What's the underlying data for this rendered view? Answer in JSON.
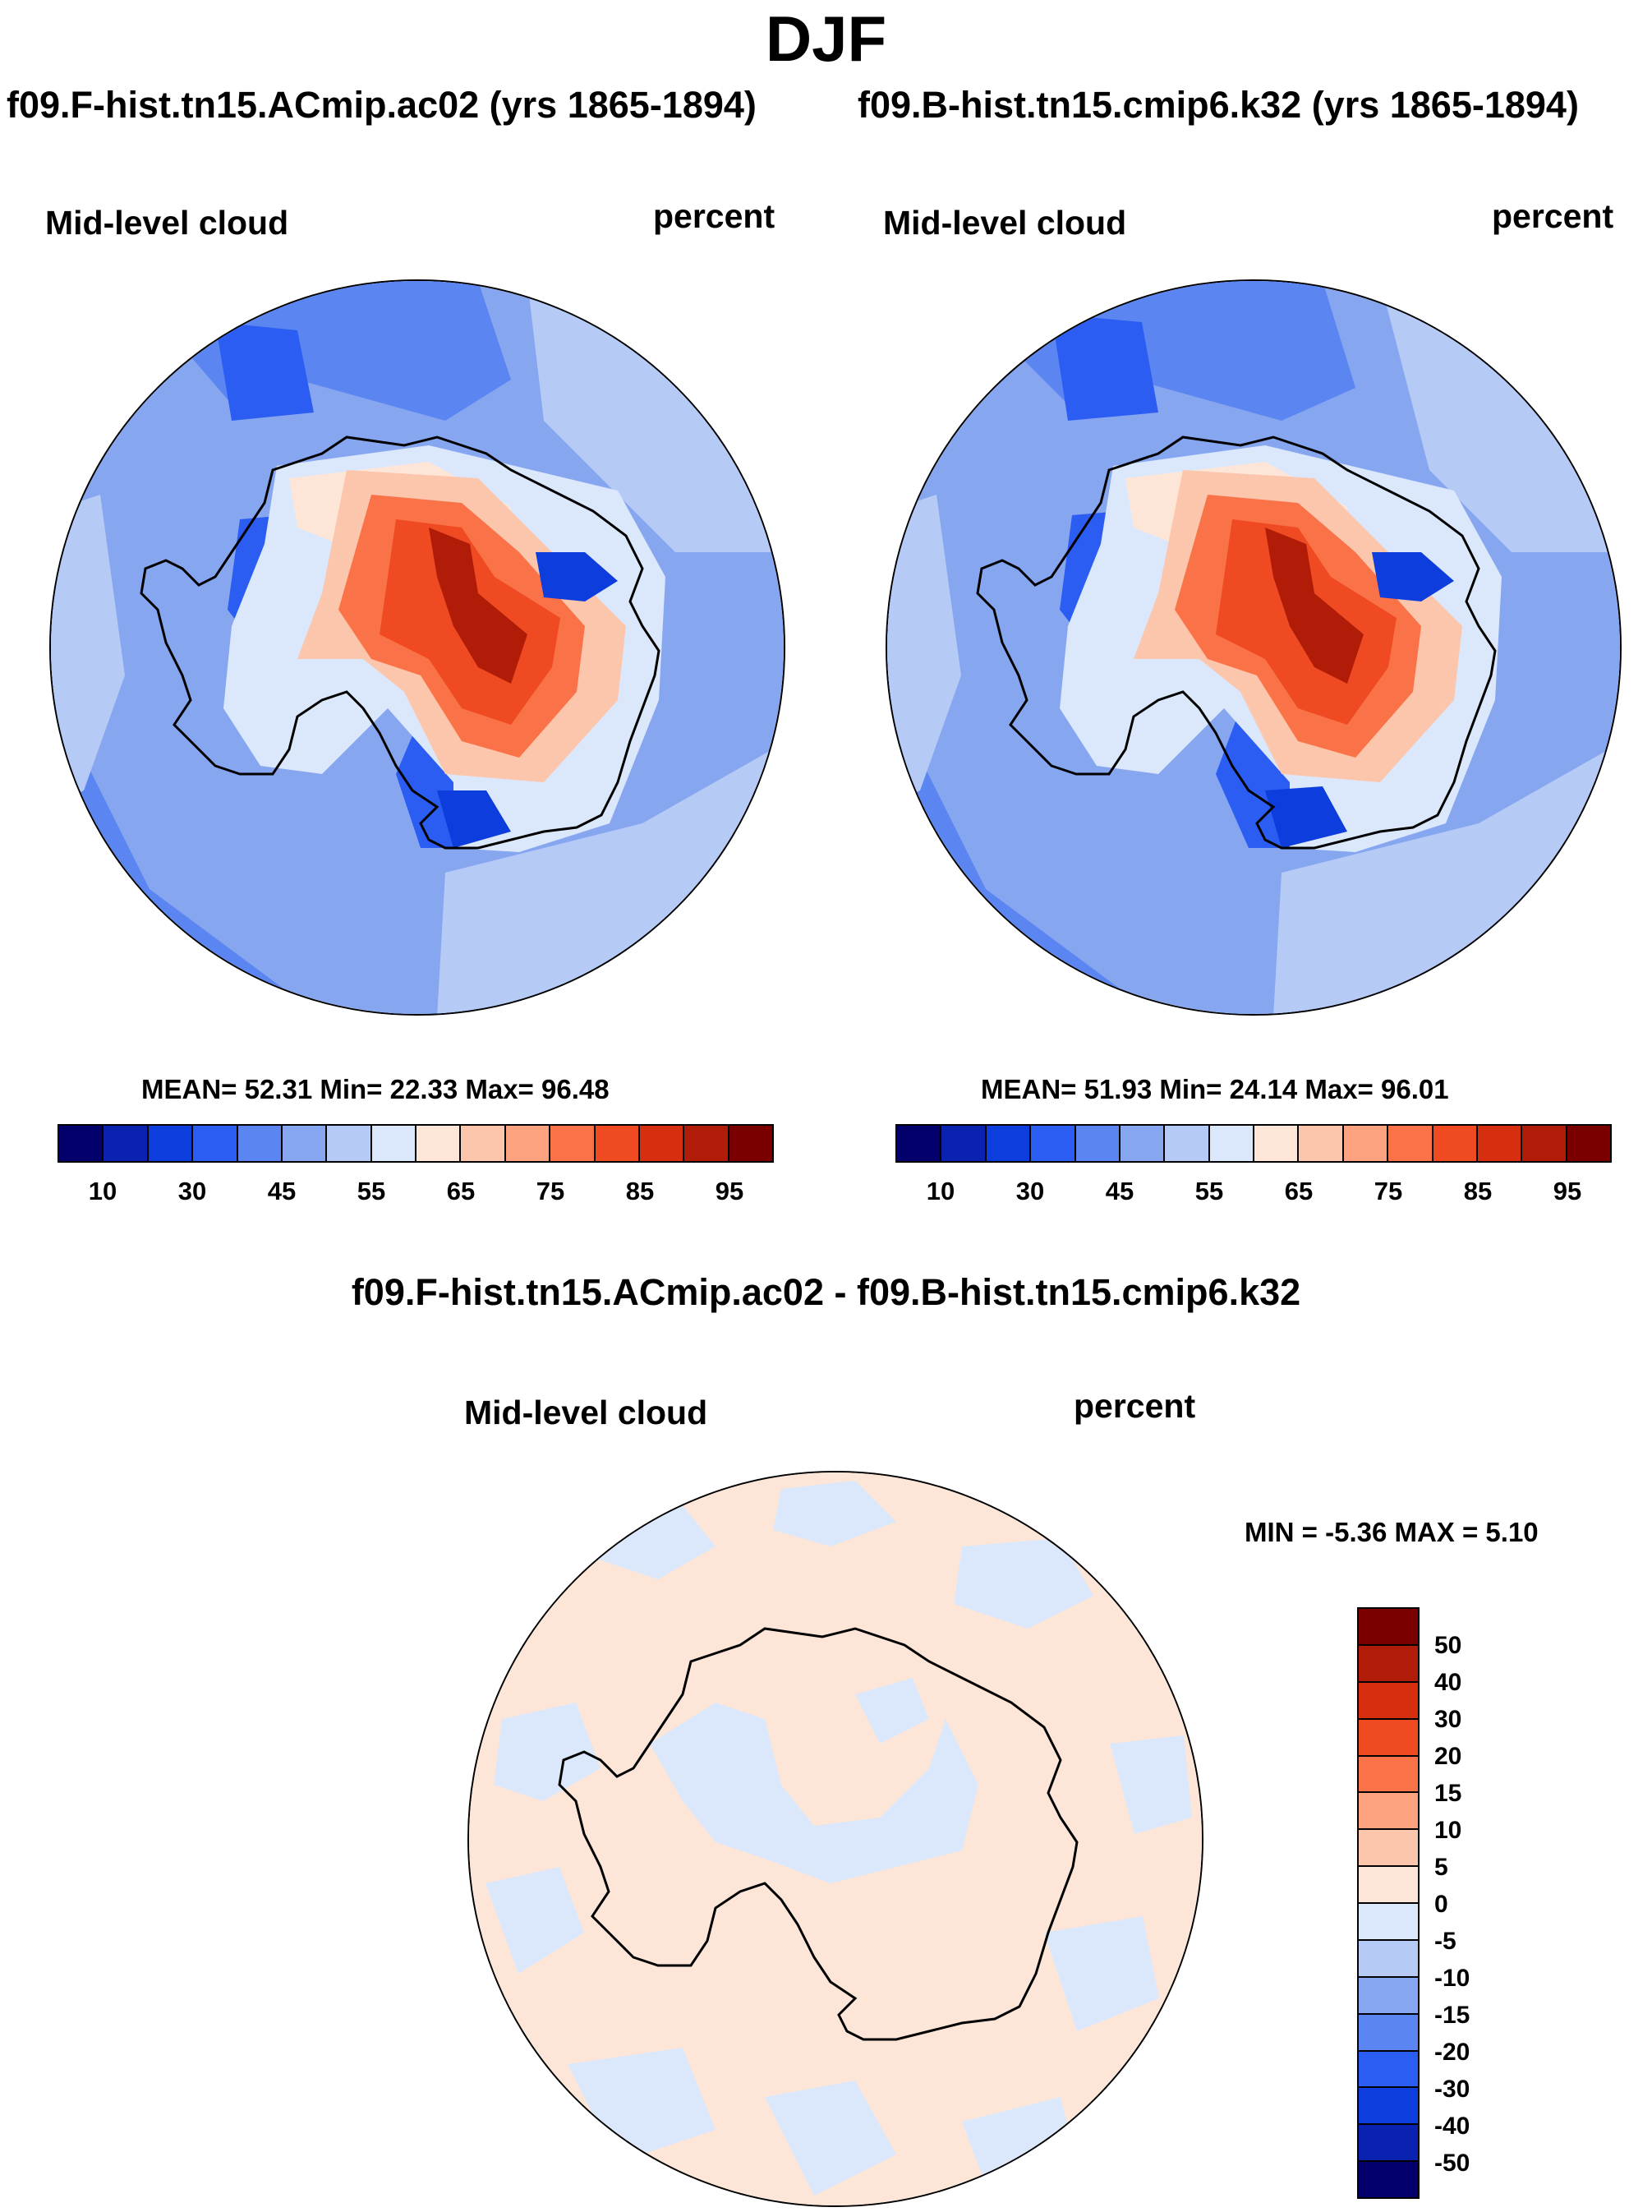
{
  "title": "DJF",
  "palette": [
    "#03006b",
    "#0a22b0",
    "#0d3ddd",
    "#2c5df2",
    "#5b86f2",
    "#86a6f0",
    "#b5caf5",
    "#dbe8fc",
    "#fde6d7",
    "#fcc6ad",
    "#fca27f",
    "#fa7348",
    "#ef4a22",
    "#d82e10",
    "#b01c08",
    "#7a0000"
  ],
  "diff_palette": [
    "#03006b",
    "#0a22b0",
    "#0d3ddd",
    "#2c5df2",
    "#5b86f2",
    "#86a6f0",
    "#b5caf5",
    "#dbe8fc",
    "#fde6d7",
    "#fcc6ad",
    "#fca27f",
    "#fa7348",
    "#ef4a22",
    "#d82e10",
    "#b01c08",
    "#7a0000"
  ],
  "panels": [
    {
      "title": "f09.F-hist.tn15.ACmip.ac02 (yrs 1865-1894)",
      "variable": "Mid-level cloud",
      "units": "percent",
      "stats": "MEAN=  52.31  Min=  22.33  Max=  96.48",
      "mean": 52.31,
      "min": 22.33,
      "max": 96.48
    },
    {
      "title": "f09.B-hist.tn15.cmip6.k32 (yrs 1865-1894)",
      "variable": "Mid-level cloud",
      "units": "percent",
      "stats": "MEAN=  51.93  Min=  24.14  Max=  96.01",
      "mean": 51.93,
      "min": 24.14,
      "max": 96.01
    }
  ],
  "colorbar_ticks": [
    "10",
    "30",
    "45",
    "55",
    "65",
    "75",
    "85",
    "95"
  ],
  "diff": {
    "title": "f09.F-hist.tn15.ACmip.ac02 - f09.B-hist.tn15.cmip6.k32",
    "variable": "Mid-level cloud",
    "units": "percent",
    "stats": "MIN =  -5.36 MAX =    5.10",
    "min": -5.36,
    "max": 5.1,
    "colorbar_ticks": [
      "50",
      "40",
      "30",
      "20",
      "15",
      "10",
      "5",
      "0",
      "-5",
      "-10",
      "-15",
      "-20",
      "-30",
      "-40",
      "-50"
    ]
  }
}
